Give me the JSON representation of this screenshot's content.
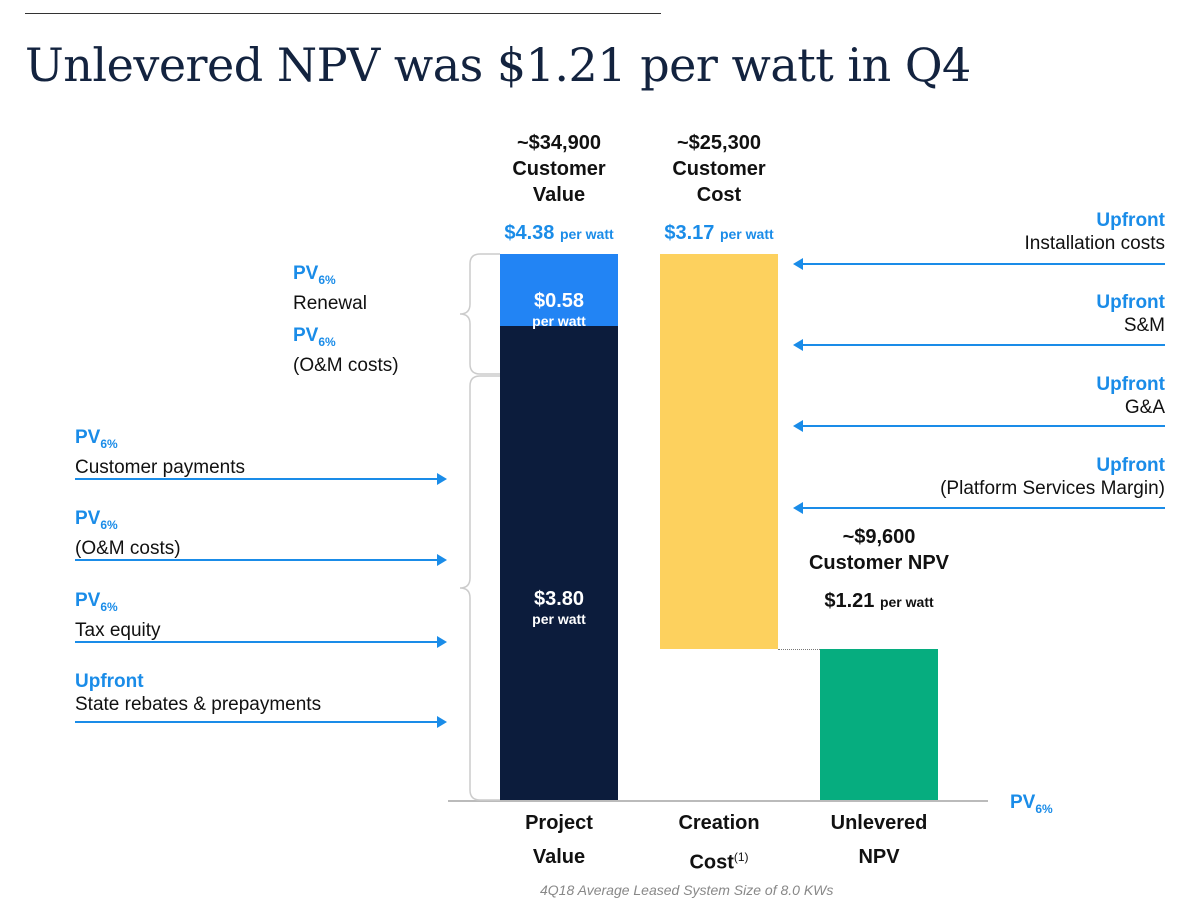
{
  "title": "Unlevered NPV was $1.21 per watt in Q4",
  "chart_data": {
    "type": "waterfall",
    "categories": [
      "Project Value",
      "Creation Cost",
      "Unlevered NPV"
    ],
    "category_lines": [
      [
        "Project",
        "Value"
      ],
      [
        "Creation",
        "Cost"
      ],
      [
        "Unlevered",
        "NPV"
      ]
    ],
    "cost_superscript": "(1)",
    "unit_small": "per watt",
    "project_segments": [
      {
        "value": 3.8,
        "label": "$3.80",
        "color": "#0c1c3c"
      },
      {
        "value": 0.58,
        "label": "$0.58",
        "color": "#2284f4"
      }
    ],
    "project_total": {
      "value": 4.38,
      "label": "$4.38"
    },
    "creation_cost": {
      "value": 3.17,
      "label": "$3.17",
      "color": "#fdd15e"
    },
    "npv": {
      "value": 1.21,
      "label": "$1.21",
      "color": "#06ad7f"
    },
    "headers": [
      {
        "amount": "~$34,900",
        "line1": "Customer",
        "line2": "Value"
      },
      {
        "amount": "~$25,300",
        "line1": "Customer",
        "line2": "Cost"
      },
      {
        "amount": "~$9,600",
        "line1": "Customer NPV"
      }
    ],
    "axis_label": {
      "main": "PV",
      "sub": "6%"
    }
  },
  "left_labels": [
    {
      "tag": "PV",
      "sub": "6%",
      "text": "Customer payments"
    },
    {
      "tag": "PV",
      "sub": "6%",
      "text": "(O&M costs)"
    },
    {
      "tag": "PV",
      "sub": "6%",
      "text": "Tax equity"
    },
    {
      "tag": "Upfront",
      "sub": "",
      "text": "State rebates & prepayments"
    }
  ],
  "renewal_labels": [
    {
      "tag": "PV",
      "sub": "6%",
      "text": "Renewal"
    },
    {
      "tag": "PV",
      "sub": "6%",
      "text": "(O&M costs)"
    }
  ],
  "right_labels": [
    {
      "tag": "Upfront",
      "text": "Installation costs"
    },
    {
      "tag": "Upfront",
      "text": "S&M"
    },
    {
      "tag": "Upfront",
      "text": "G&A"
    },
    {
      "tag": "Upfront",
      "text": "(Platform Services Margin)"
    }
  ],
  "footnote": "4Q18 Average Leased System Size of 8.0 KWs"
}
